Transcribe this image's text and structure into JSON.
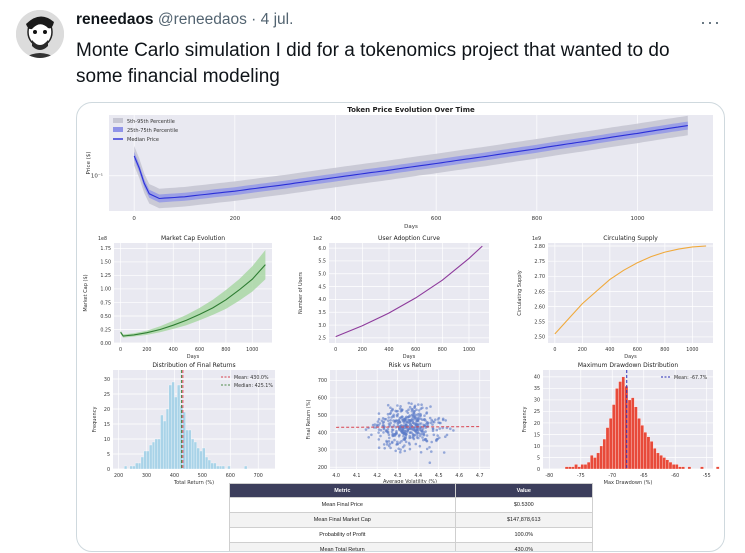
{
  "tweet": {
    "display_name": "reneedaos",
    "handle": "@reneedaos",
    "separator": "·",
    "date": "4 jul.",
    "more_label": "···",
    "text": "Monte Carlo simulation I did for a tokenomics project that wanted to do some financial modeling"
  },
  "chart_data": [
    {
      "type": "line",
      "title": "Token Price Evolution Over Time",
      "xlabel": "Days",
      "ylabel": "Price ($)",
      "y_scale": "log",
      "y_tick_labels": [
        "10⁻¹"
      ],
      "x_ticks": [
        0,
        200,
        400,
        600,
        800,
        1000
      ],
      "xlim": [
        -50,
        1150
      ],
      "legend": "top-left",
      "legend_entries": [
        "5th-95th Percentile",
        "25th-75th Percentile",
        "Median Price"
      ],
      "colors": {
        "outer": "#c7c7d3",
        "inner": "#8f93e8",
        "median": "#2a2fd8"
      },
      "x": [
        0,
        25,
        50,
        100,
        200,
        300,
        400,
        500,
        600,
        700,
        800,
        900,
        1000,
        1100
      ],
      "median": [
        0.14,
        0.075,
        0.068,
        0.07,
        0.077,
        0.086,
        0.097,
        0.109,
        0.123,
        0.139,
        0.158,
        0.18,
        0.205,
        0.234
      ]
    },
    {
      "type": "area",
      "title": "Market Cap Evolution",
      "xlabel": "Days",
      "ylabel": "Market Cap ($)",
      "y_multiplier": "1e8",
      "y_ticks": [
        "0.00",
        "0.25",
        "0.50",
        "0.75",
        "1.00",
        "1.25",
        "1.50",
        "1.75"
      ],
      "x_ticks": [
        0,
        200,
        400,
        600,
        800,
        1000
      ],
      "ylim": [
        0,
        1.85
      ],
      "xlim": [
        -50,
        1150
      ],
      "colors": {
        "line": "#2e7d32",
        "band": "#a9d7a5"
      },
      "x": [
        0,
        20,
        100,
        200,
        300,
        400,
        500,
        600,
        700,
        800,
        900,
        1000,
        1100
      ],
      "median": [
        0.2,
        0.13,
        0.15,
        0.19,
        0.25,
        0.33,
        0.42,
        0.53,
        0.65,
        0.8,
        0.98,
        1.18,
        1.45
      ],
      "upper": [
        0.23,
        0.16,
        0.18,
        0.23,
        0.31,
        0.41,
        0.52,
        0.65,
        0.8,
        0.98,
        1.18,
        1.42,
        1.72
      ],
      "lower": [
        0.17,
        0.1,
        0.12,
        0.15,
        0.2,
        0.26,
        0.33,
        0.42,
        0.52,
        0.63,
        0.78,
        0.95,
        1.18
      ]
    },
    {
      "type": "line",
      "title": "User Adoption Curve",
      "xlabel": "Days",
      "ylabel": "Number of Users",
      "y_multiplier": "1e2",
      "y_ticks": [
        "2.5",
        "3.0",
        "3.5",
        "4.0",
        "4.5",
        "5.0",
        "5.5",
        "6.0"
      ],
      "x_ticks": [
        0,
        200,
        400,
        600,
        800,
        1000
      ],
      "ylim": [
        2.3,
        6.2
      ],
      "xlim": [
        -50,
        1150
      ],
      "colors": {
        "line": "#8e3b9c"
      },
      "x": [
        0,
        200,
        400,
        600,
        800,
        1000,
        1100
      ],
      "values": [
        2.55,
        2.97,
        3.47,
        4.06,
        4.75,
        5.6,
        6.08
      ]
    },
    {
      "type": "line",
      "title": "Circulating Supply",
      "xlabel": "Days",
      "ylabel": "Circulating Supply",
      "y_multiplier": "1e9",
      "y_ticks": [
        "2.50",
        "2.55",
        "2.60",
        "2.65",
        "2.70",
        "2.75",
        "2.80"
      ],
      "x_ticks": [
        0,
        200,
        400,
        600,
        800,
        1000
      ],
      "ylim": [
        2.48,
        2.81
      ],
      "xlim": [
        -50,
        1150
      ],
      "colors": {
        "line": "#f0a93b"
      },
      "x": [
        0,
        100,
        200,
        300,
        400,
        500,
        600,
        700,
        800,
        900,
        1000,
        1100
      ],
      "values": [
        2.51,
        2.56,
        2.61,
        2.65,
        2.69,
        2.72,
        2.745,
        2.765,
        2.78,
        2.79,
        2.797,
        2.8
      ]
    },
    {
      "type": "bar",
      "title": "Distribution of Final Returns",
      "xlabel": "Total Return (%)",
      "ylabel": "Frequency",
      "y_ticks": [
        0,
        5,
        10,
        15,
        20,
        25,
        30
      ],
      "x_ticks": [
        200,
        300,
        400,
        500,
        600,
        700
      ],
      "ylim": [
        0,
        33
      ],
      "xlim": [
        180,
        760
      ],
      "legend": "top-right",
      "legend_entries": [
        "Mean: 430.0%",
        "Median: 425.1%"
      ],
      "mean": 430.0,
      "median": 425.1,
      "colors": {
        "bar": "#a9d3e8",
        "mean": "#d9434f",
        "median": "#4e8a4a"
      },
      "bin_start": 220,
      "bin_width": 10,
      "values": [
        1,
        0,
        1,
        1,
        2,
        2,
        4,
        6,
        6,
        8,
        9,
        10,
        10,
        18,
        16,
        20,
        28,
        29,
        24,
        28,
        21,
        19,
        13,
        13,
        10,
        9,
        7,
        6,
        7,
        4,
        3,
        2,
        2,
        1,
        1,
        1,
        0,
        1,
        0,
        0,
        0,
        0,
        0,
        1
      ]
    },
    {
      "type": "scatter",
      "title": "Risk vs Return",
      "xlabel": "Average Volatility (%)",
      "ylabel": "Final Return (%)",
      "x_tick_labels": [
        "4.0",
        "4.1",
        "4.2",
        "4.3",
        "4.4",
        "4.5",
        "4.6",
        "4.7"
      ],
      "y_ticks": [
        200,
        300,
        400,
        500,
        600,
        700
      ],
      "xlim": [
        3.97,
        4.75
      ],
      "ylim": [
        190,
        760
      ],
      "colors": {
        "point": "#5b7cc8",
        "trend": "#d9434f"
      },
      "trend": [
        [
          4.0,
          430
        ],
        [
          4.7,
          434
        ]
      ]
    },
    {
      "type": "bar",
      "title": "Maximum Drawdown Distribution",
      "xlabel": "Max Drawdown (%)",
      "ylabel": "Frequency",
      "y_ticks": [
        0,
        5,
        10,
        15,
        20,
        25,
        30,
        35,
        40
      ],
      "x_tick_labels": [
        "-80",
        "-75",
        "-70",
        "-65",
        "-60",
        "-55"
      ],
      "xlim": [
        -81,
        -54
      ],
      "ylim": [
        0,
        43
      ],
      "legend": "top-right",
      "legend_entries": [
        "Mean: -67.7%"
      ],
      "mean": -67.7,
      "colors": {
        "bar": "#e84a3a",
        "mean": "#2a2fb8"
      },
      "bin_start": -80,
      "bin_width": 0.5,
      "values": [
        0,
        0,
        0,
        0,
        0,
        1,
        1,
        1,
        2,
        1,
        2,
        2,
        3,
        6,
        5,
        7,
        10,
        13,
        18,
        22,
        28,
        35,
        38,
        40,
        36,
        30,
        31,
        27,
        22,
        19,
        16,
        14,
        12,
        9,
        7,
        6,
        5,
        4,
        3,
        2,
        2,
        1,
        1,
        0,
        1,
        0,
        0,
        0,
        1,
        0,
        0,
        0,
        0,
        1
      ]
    },
    {
      "type": "table",
      "headers": [
        "Metric",
        "Value"
      ],
      "rows": [
        [
          "Mean Final Price",
          "$0.5300"
        ],
        [
          "Mean Final Market Cap",
          "$147,878,613"
        ],
        [
          "Probability of Profit",
          "100.0%"
        ],
        [
          "Mean Total Return",
          "430.0%"
        ]
      ]
    }
  ]
}
